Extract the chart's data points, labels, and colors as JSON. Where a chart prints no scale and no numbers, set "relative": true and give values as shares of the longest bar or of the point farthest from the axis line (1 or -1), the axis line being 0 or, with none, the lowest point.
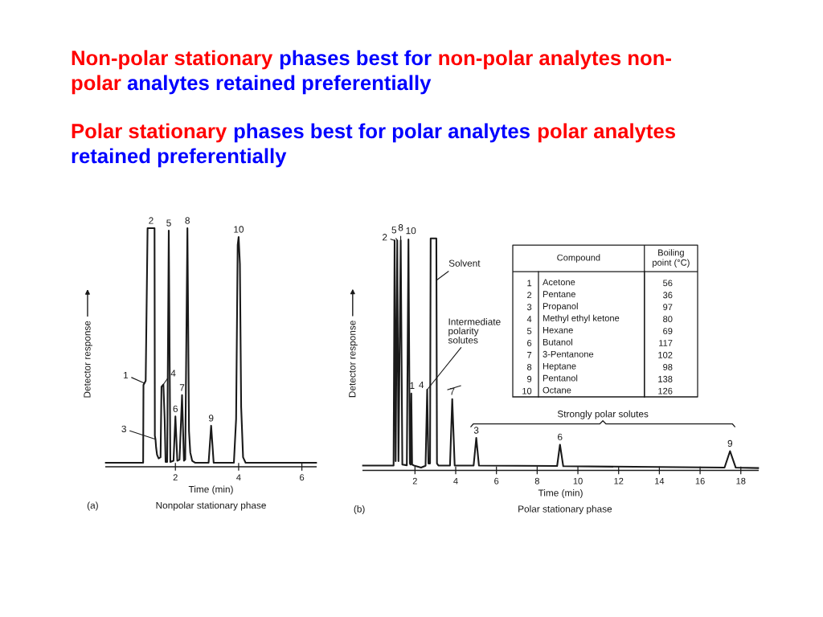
{
  "chart_data": [
    {
      "type": "other",
      "annotations": [
        "Non-polar stationary",
        "phases best for",
        "non-polar analytes non-",
        "polar",
        "analytes retained preferentially"
      ],
      "colors": [
        "#ff0000",
        "#0000ff",
        "#ff0000",
        "#ff0000",
        "#0000ff"
      ]
    },
    {
      "type": "other",
      "annotations": [
        "Polar stationary",
        "phases best for polar analytes",
        "polar analytes",
        "retained preferentially"
      ],
      "colors": [
        "#ff0000",
        "#0000ff",
        "#ff0000",
        "#0000ff"
      ]
    },
    {
      "type": "line",
      "relative": true,
      "xlabel": "Time (min)",
      "ylabel": "Detector response",
      "xlim": [
        -0.2,
        6.45
      ],
      "xticks": [
        2,
        4,
        6
      ],
      "x": [
        -0.2,
        0.98,
        0.99,
        1.02,
        1.06,
        1.12,
        1.34,
        1.35,
        1.37,
        1.39,
        1.42,
        1.47,
        1.53,
        1.56,
        1.62,
        1.66,
        1.69,
        1.74,
        1.79,
        1.84,
        1.94,
        2.0,
        2.06,
        2.13,
        2.21,
        2.27,
        2.31,
        2.38,
        2.43,
        2.47,
        2.53,
        2.62,
        3.05,
        3.13,
        3.21,
        3.85,
        3.92,
        3.97,
        4.0,
        4.04,
        4.08,
        4.14,
        4.22,
        6.45
      ],
      "series": [
        {
          "color": "#1a1a1a",
          "values": [
            0.017,
            0.017,
            0.343,
            0.35,
            0.36,
            1.0,
            1.0,
            0.13,
            0.115,
            0.08,
            0.05,
            0.035,
            0.04,
            0.335,
            0.345,
            0.2,
            0.02,
            0.02,
            0.99,
            0.02,
            0.025,
            0.211,
            0.025,
            0.03,
            0.3,
            0.025,
            0.03,
            1.0,
            0.15,
            0.06,
            0.025,
            0.017,
            0.017,
            0.172,
            0.017,
            0.017,
            0.2,
            0.93,
            0.963,
            0.85,
            0.25,
            0.04,
            0.017,
            0.017
          ]
        }
      ],
      "annotations": [
        {
          "text": "1",
          "x": 1.02,
          "y": 0.35
        },
        {
          "text": "2",
          "x": 1.23,
          "y": 1.0
        },
        {
          "text": "3",
          "x": 1.37,
          "y": 0.115
        },
        {
          "text": "4",
          "x": 1.62,
          "y": 0.345
        },
        {
          "text": "5",
          "x": 1.79,
          "y": 0.99
        },
        {
          "text": "6",
          "x": 2.0,
          "y": 0.211
        },
        {
          "text": "7",
          "x": 2.21,
          "y": 0.3
        },
        {
          "text": "8",
          "x": 2.38,
          "y": 1.0
        },
        {
          "text": "9",
          "x": 3.13,
          "y": 0.172
        },
        {
          "text": "10",
          "x": 4.0,
          "y": 0.963
        },
        "(a)",
        "Nonpolar stationary phase"
      ]
    },
    {
      "type": "line",
      "relative": true,
      "xlabel": "Time (min)",
      "ylabel": "Detector response",
      "xlim": [
        -0.55,
        18.85
      ],
      "xticks": [
        2,
        4,
        6,
        8,
        10,
        12,
        14,
        16,
        18
      ],
      "x": [
        -0.55,
        0.95,
        1.0,
        1.05,
        1.13,
        1.19,
        1.3,
        1.38,
        1.6,
        1.68,
        1.75,
        1.78,
        1.82,
        1.86,
        1.95,
        2.3,
        2.52,
        2.6,
        2.66,
        2.74,
        2.77,
        3.05,
        3.08,
        3.15,
        3.72,
        3.83,
        3.95,
        4.88,
        5.01,
        5.14,
        8.98,
        9.12,
        9.28,
        17.2,
        17.47,
        17.75,
        18.85
      ],
      "series": [
        {
          "color": "#1a1a1a",
          "values": [
            0.021,
            0.021,
            0.991,
            0.04,
            0.991,
            0.04,
            0.991,
            0.025,
            0.022,
            0.995,
            0.03,
            0.025,
            0.331,
            0.025,
            0.021,
            0.012,
            0.02,
            0.348,
            0.03,
            0.03,
            1.0,
            1.0,
            0.03,
            0.021,
            0.021,
            0.307,
            0.021,
            0.021,
            0.14,
            0.021,
            0.019,
            0.111,
            0.018,
            0.012,
            0.083,
            0.012,
            0.01
          ]
        }
      ],
      "annotations": [
        {
          "text": "2",
          "x": 1.0,
          "y": 0.991
        },
        {
          "text": "5",
          "x": 1.13,
          "y": 0.991
        },
        {
          "text": "8",
          "x": 1.3,
          "y": 0.991
        },
        {
          "text": "10",
          "x": 1.68,
          "y": 0.995
        },
        {
          "text": "1",
          "x": 1.82,
          "y": 0.331
        },
        {
          "text": "4",
          "x": 2.6,
          "y": 0.348
        },
        {
          "text": "7",
          "x": 3.83,
          "y": 0.307
        },
        {
          "text": "3",
          "x": 5.01,
          "y": 0.14
        },
        {
          "text": "6",
          "x": 9.12,
          "y": 0.111
        },
        {
          "text": "9",
          "x": 17.47,
          "y": 0.083
        },
        {
          "text": "Solvent",
          "x": 3.06,
          "y": 0.82
        },
        {
          "text": "Intermediate polarity solutes",
          "x": 2.6,
          "y": 0.348
        },
        "Strongly polar solutes",
        "(b)",
        "Polar stationary phase"
      ]
    },
    {
      "type": "heatmap",
      "categories": [
        "Compound"
      ],
      "y_categories": [
        "1",
        "2",
        "3",
        "4",
        "5",
        "6",
        "7",
        "8",
        "9",
        "10"
      ],
      "y2label": "Boiling point (°C)",
      "y2_categories": [
        "56",
        "36",
        "97",
        "80",
        "69",
        "117",
        "102",
        "98",
        "138",
        "126"
      ],
      "cells": [
        [
          null
        ],
        [
          null
        ],
        [
          null
        ],
        [
          null
        ],
        [
          null
        ],
        [
          null
        ],
        [
          null
        ],
        [
          null
        ],
        [
          null
        ],
        [
          null
        ]
      ],
      "cell_labels": [
        [
          "Acetone"
        ],
        [
          "Pentane"
        ],
        [
          "Propanol"
        ],
        [
          "Methyl ethyl ketone"
        ],
        [
          "Hexane"
        ],
        [
          "Butanol"
        ],
        [
          "3-Pentanone"
        ],
        [
          "Heptane"
        ],
        [
          "Pentanol"
        ],
        [
          "Octane"
        ]
      ]
    }
  ]
}
